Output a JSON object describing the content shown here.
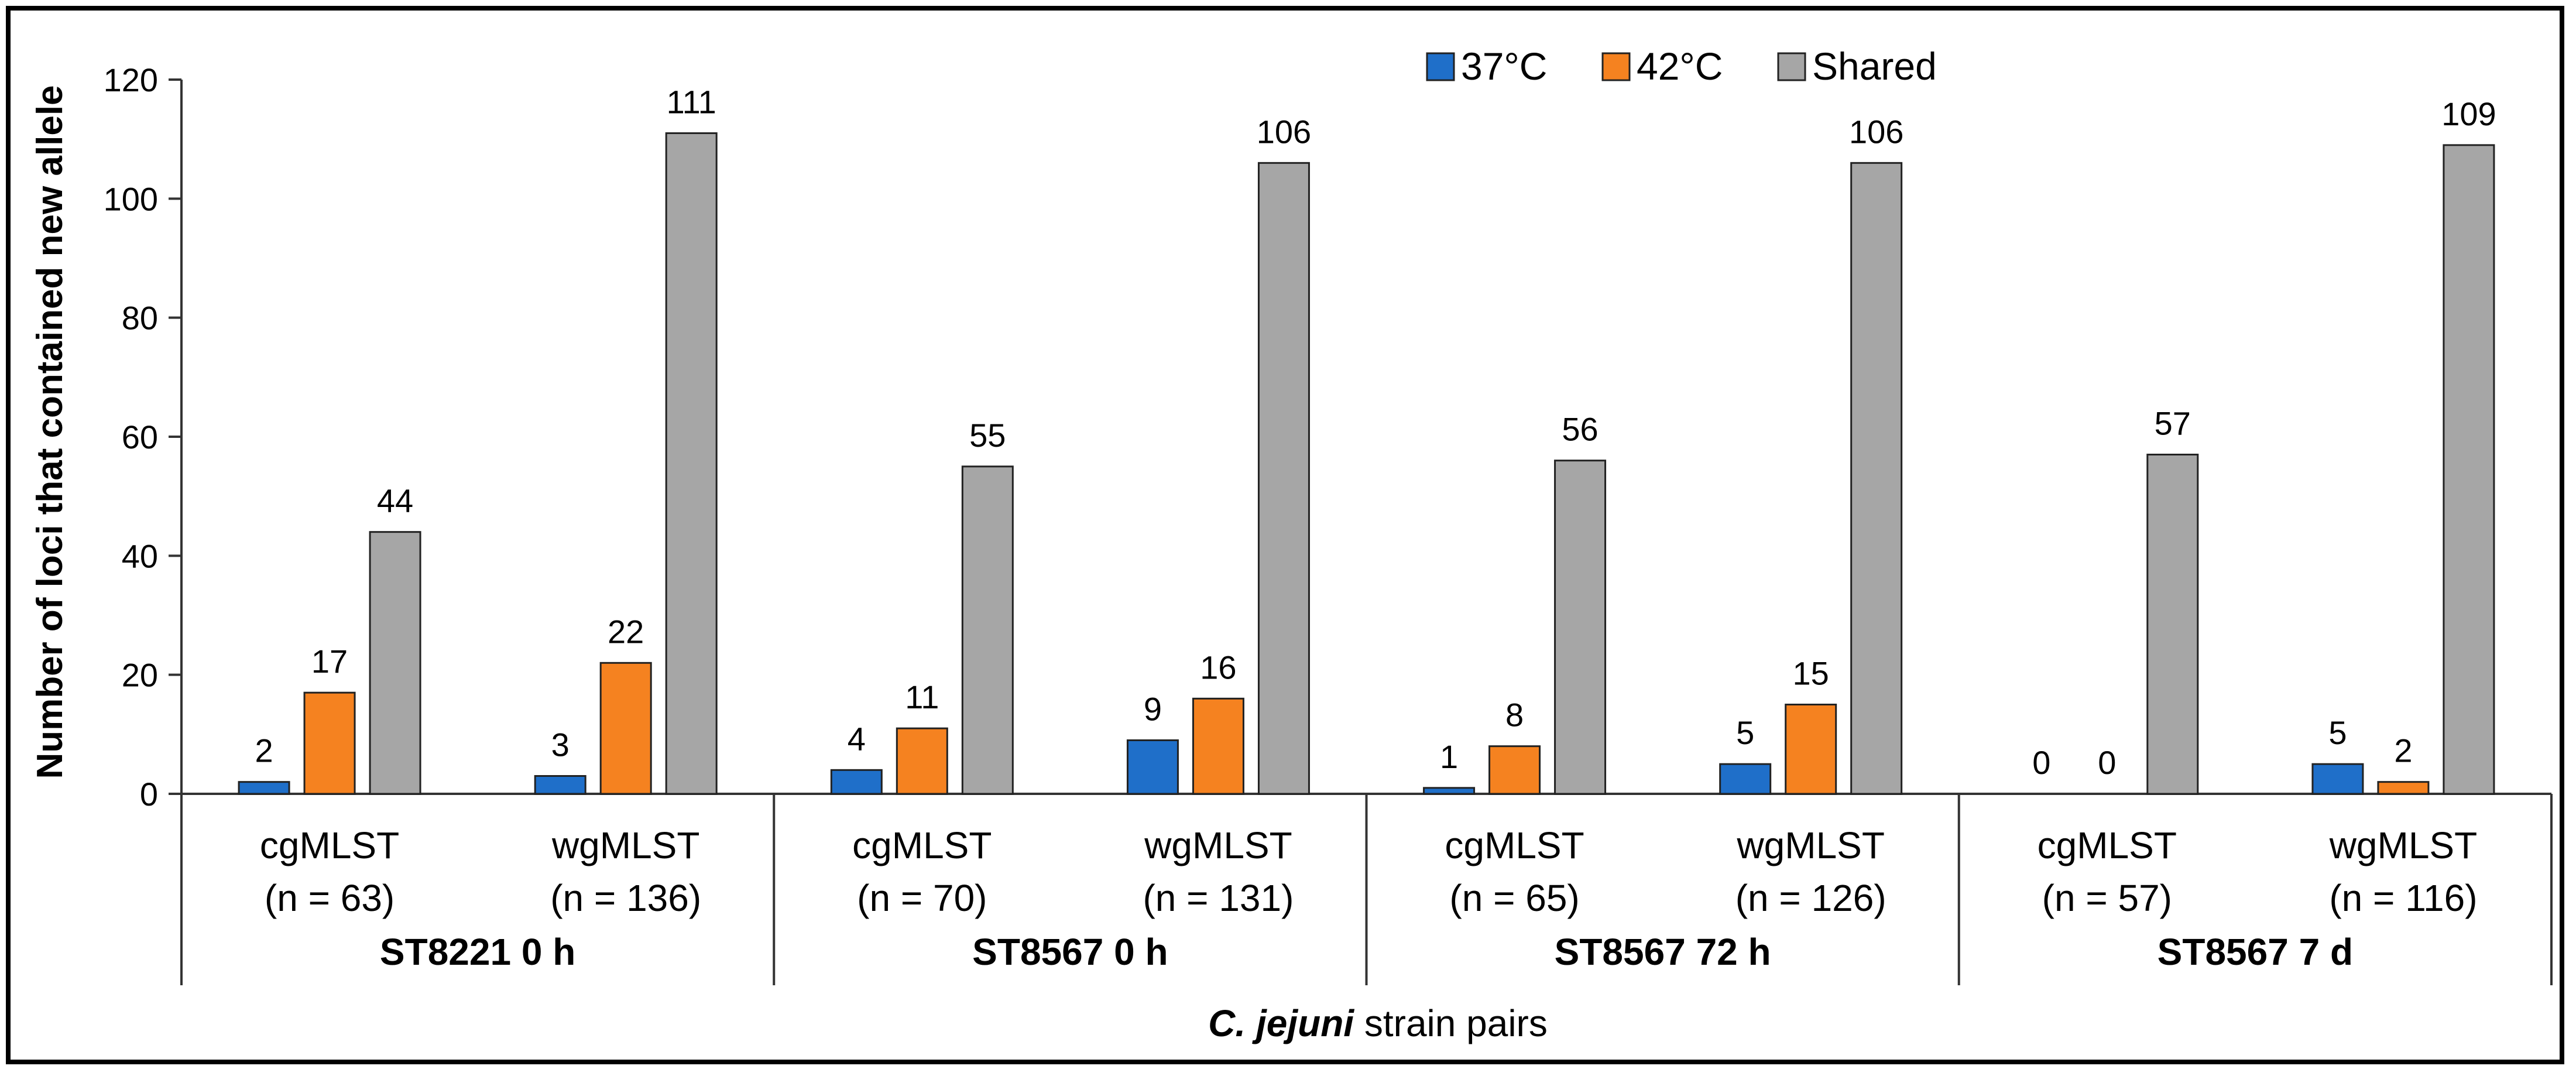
{
  "chart_data": {
    "type": "bar",
    "title": "",
    "ylabel": "Number of loci that contained new allele",
    "xlabel_italic": "C. jejuni",
    "xlabel_rest": " strain pairs",
    "ylim": [
      0,
      120
    ],
    "yticks": [
      "0",
      "20",
      "40",
      "60",
      "80",
      "100",
      "120"
    ],
    "ytick_values": [
      0,
      20,
      40,
      60,
      80,
      100,
      120
    ],
    "groups": [
      "ST8221 0 h",
      "ST8567 0 h",
      "ST8567 72 h",
      "ST8567 7 d"
    ],
    "categories": [
      {
        "method": "cgMLST",
        "n": "(n = 63)",
        "group": 0
      },
      {
        "method": "wgMLST",
        "n": "(n = 136)",
        "group": 0
      },
      {
        "method": "cgMLST",
        "n": "(n = 70)",
        "group": 1
      },
      {
        "method": "wgMLST",
        "n": "(n = 131)",
        "group": 1
      },
      {
        "method": "cgMLST",
        "n": "(n = 65)",
        "group": 2
      },
      {
        "method": "wgMLST",
        "n": "(n = 126)",
        "group": 2
      },
      {
        "method": "cgMLST",
        "n": "(n = 57)",
        "group": 3
      },
      {
        "method": "wgMLST",
        "n": "(n = 116)",
        "group": 3
      }
    ],
    "series": [
      {
        "name": "37°C",
        "color": "#1f6fc9",
        "values": [
          2,
          3,
          4,
          9,
          1,
          5,
          0,
          5
        ]
      },
      {
        "name": "42°C",
        "color": "#f58220",
        "values": [
          17,
          22,
          11,
          16,
          8,
          15,
          0,
          2
        ]
      },
      {
        "name": "Shared",
        "color": "#a6a6a6",
        "values": [
          44,
          111,
          55,
          106,
          56,
          106,
          57,
          109
        ]
      }
    ],
    "legend_position": "top-right"
  }
}
